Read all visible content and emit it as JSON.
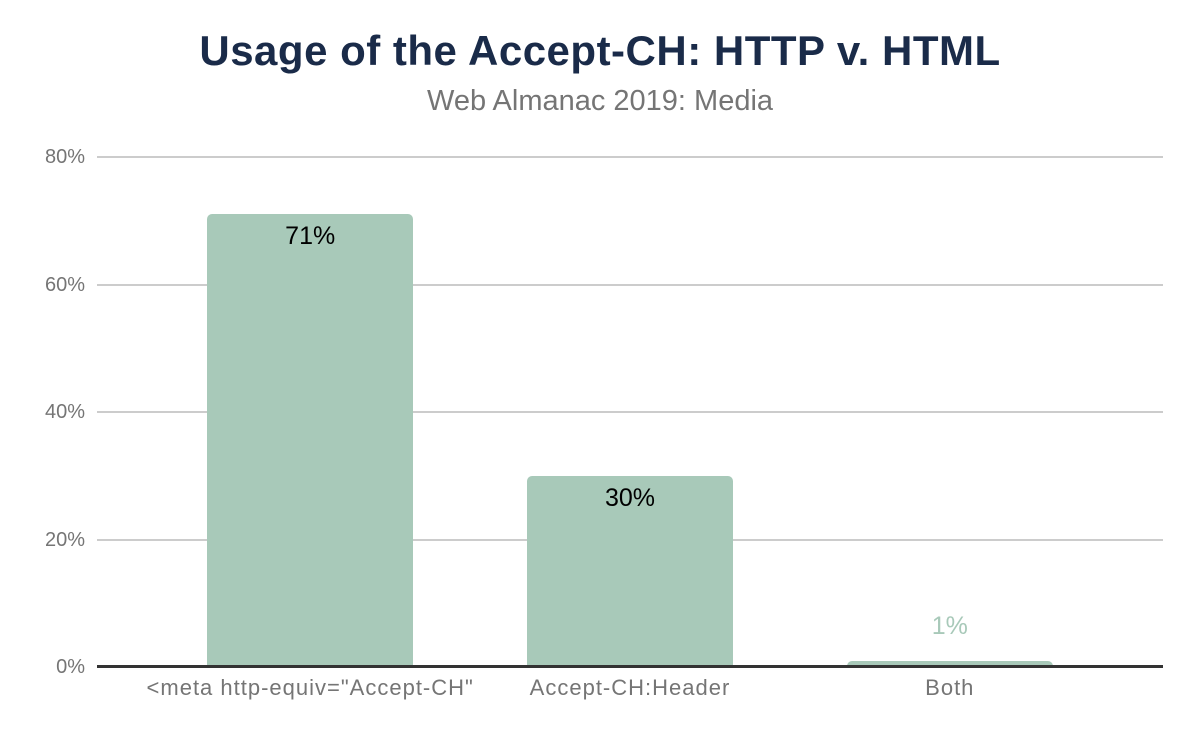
{
  "chart_data": {
    "type": "bar",
    "title": "Usage of the Accept-CH: HTTP v. HTML",
    "subtitle": "Web Almanac 2019: Media",
    "categories": [
      "<meta http-equiv=\"Accept-CH\"",
      "Accept-CH:Header",
      "Both"
    ],
    "values": [
      71,
      30,
      1
    ],
    "value_labels": [
      "71%",
      "30%",
      "1%"
    ],
    "xlabel": "",
    "ylabel": "",
    "ylim": [
      0,
      80
    ],
    "yticks": [
      0,
      20,
      40,
      60,
      80
    ],
    "ytick_labels": [
      "0%",
      "20%",
      "40%",
      "60%",
      "80%"
    ],
    "grid": true,
    "legend": "none",
    "colors": {
      "bar": "#a8c9b9",
      "title": "#1a2b49",
      "subtitle": "#757575",
      "tick_label": "#757575",
      "value_label_inside": "#000000",
      "value_label_outside": "#a8c9b9",
      "gridline": "#cccccc",
      "axis_line": "#333333",
      "background": "#ffffff"
    }
  }
}
